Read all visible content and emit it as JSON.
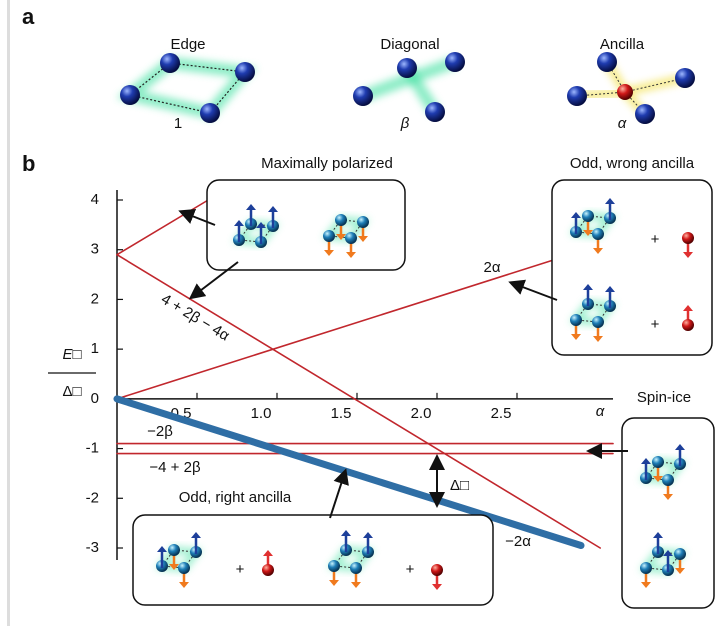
{
  "panel_a": {
    "label": "a",
    "items": [
      {
        "title": "Edge",
        "weight": "1"
      },
      {
        "title": "Diagonal",
        "weight": "β"
      },
      {
        "title": "Ancilla",
        "weight": "α"
      }
    ]
  },
  "panel_b": {
    "label": "b",
    "insets": [
      {
        "title": "Maximally polarized"
      },
      {
        "title": "Odd, wrong ancilla",
        "joiner": "+"
      },
      {
        "title": "Spin-ice"
      },
      {
        "title": "Odd, right ancilla",
        "joiner": "+"
      }
    ],
    "gap_label": "Δ□"
  },
  "chart_data": {
    "type": "line",
    "ylabel_top": "E□",
    "ylabel_bottom": "Δ□",
    "xlabel": "α",
    "xlim": [
      0,
      3.1
    ],
    "ylim": [
      -3,
      4
    ],
    "xticks": [
      0.5,
      {
        "value": 1,
        "label": "1.0"
      },
      1.5,
      {
        "value": 2,
        "label": "2.0"
      },
      2.5
    ],
    "yticks": [
      -3,
      -2,
      -1,
      0,
      1,
      2,
      3,
      4
    ],
    "series": [
      {
        "name": "2α",
        "color": "#c1272d",
        "x": [
          0,
          2.93
        ],
        "values": [
          0,
          3.0
        ]
      },
      {
        "name": "4 + 2β − 4α",
        "color": "#c1272d",
        "x": [
          0,
          3.02
        ],
        "values": [
          2.9,
          -3.0
        ]
      },
      {
        "color": "#c1272d",
        "x": [
          0,
          0.57
        ],
        "values": [
          2.9,
          4.0
        ]
      },
      {
        "name": "−2β",
        "color": "#c1272d",
        "x": [
          0,
          3.1
        ],
        "values": [
          -0.9,
          -0.9
        ]
      },
      {
        "name": "−4 + 2β",
        "color": "#c1272d",
        "x": [
          0,
          3.1
        ],
        "values": [
          -1.1,
          -1.1
        ]
      },
      {
        "name": "−2α",
        "color": "#2f6ea5",
        "x": [
          0,
          2.9
        ],
        "values": [
          0,
          -2.95
        ]
      }
    ]
  }
}
